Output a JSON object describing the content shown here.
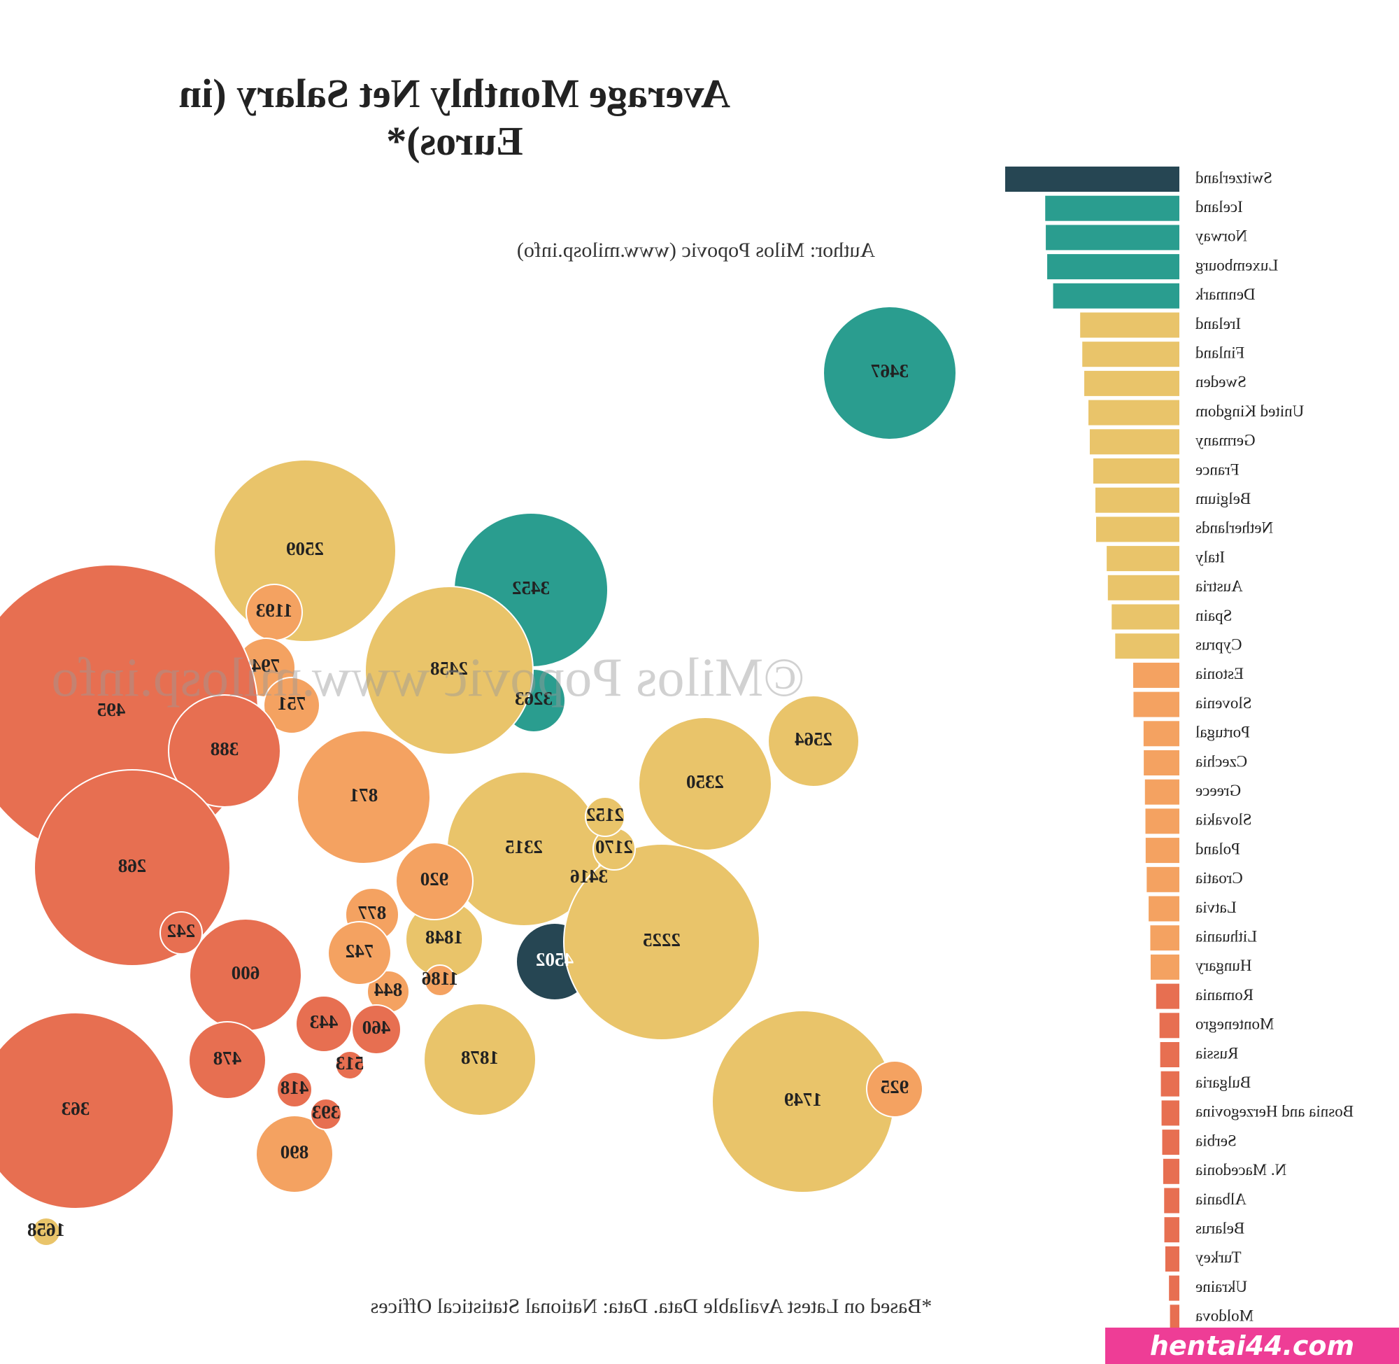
{
  "title": "Average Monthly Net Salary (in Euros)*",
  "author": "Author: Milos Popovic (www.milosp.info)",
  "footer": "*Based on Latest Available Data. Data:  National Statistical Offices",
  "watermark": "©Milos Popovic www.milosp.info",
  "site_banner": "hentai44.com",
  "chart_data": {
    "type": "bar",
    "orientation": "horizontal",
    "categories": [
      "Switzerland",
      "Iceland",
      "Norway",
      "Luxembourg",
      "Denmark",
      "Ireland",
      "Finland",
      "Sweden",
      "United Kingdom",
      "Germany",
      "France",
      "Belgium",
      "Netherlands",
      "Italy",
      "Austria",
      "Spain",
      "Cyprus",
      "Estonia",
      "Slovenia",
      "Portugal",
      "Czechia",
      "Greece",
      "Slovakia",
      "Poland",
      "Croatia",
      "Latvia",
      "Lithuania",
      "Hungary",
      "Romania",
      "Montenegro",
      "Russia",
      "Bulgaria",
      "Bosnia and Herzegovina",
      "Serbia",
      "N. Macedonia",
      "Albania",
      "Belarus",
      "Turkey",
      "Ukraine",
      "Moldova"
    ],
    "values": [
      4502,
      3467,
      3452,
      3416,
      3263,
      2564,
      2509,
      2458,
      2350,
      2315,
      2225,
      2170,
      2152,
      1878,
      1848,
      1749,
      1658,
      1193,
      1186,
      925,
      920,
      890,
      877,
      871,
      844,
      794,
      751,
      742,
      600,
      513,
      495,
      478,
      460,
      443,
      418,
      393,
      388,
      363,
      268,
      242
    ],
    "colors": [
      "#264653",
      "#2a9d8f",
      "#2a9d8f",
      "#2a9d8f",
      "#2a9d8f",
      "#e9c46a",
      "#e9c46a",
      "#e9c46a",
      "#e9c46a",
      "#e9c46a",
      "#e9c46a",
      "#e9c46a",
      "#e9c46a",
      "#e9c46a",
      "#e9c46a",
      "#e9c46a",
      "#e9c46a",
      "#f4a261",
      "#f4a261",
      "#f4a261",
      "#f4a261",
      "#f4a261",
      "#f4a261",
      "#f4a261",
      "#f4a261",
      "#f4a261",
      "#f4a261",
      "#f4a261",
      "#e76f51",
      "#e76f51",
      "#e76f51",
      "#e76f51",
      "#e76f51",
      "#e76f51",
      "#e76f51",
      "#e76f51",
      "#e76f51",
      "#e76f51",
      "#e76f51",
      "#e76f51"
    ]
  }
}
